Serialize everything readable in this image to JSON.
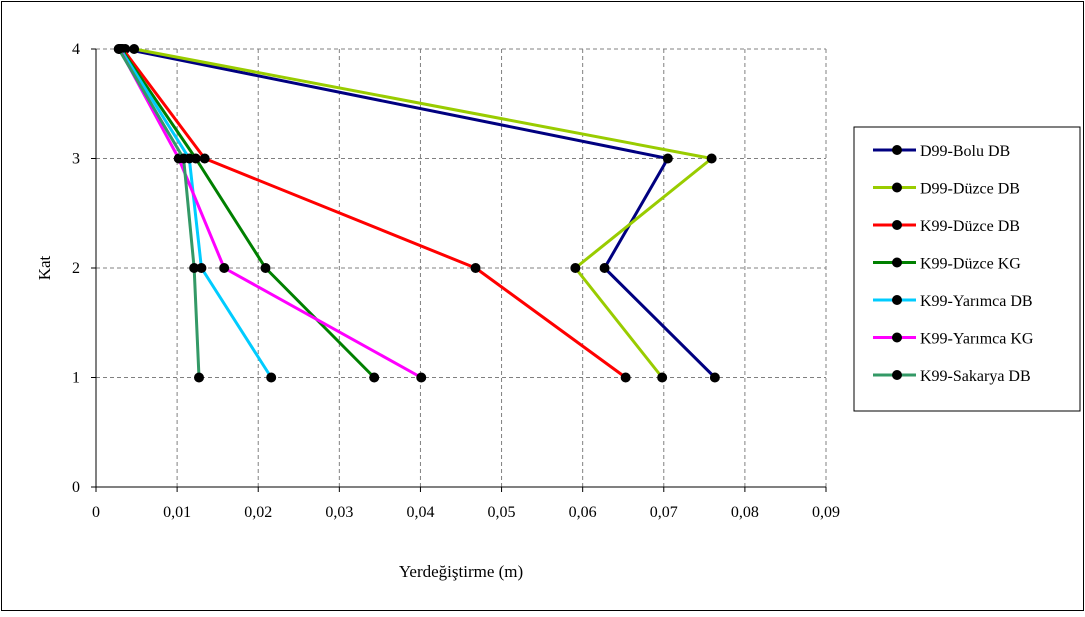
{
  "chart_data": {
    "type": "line",
    "title": "",
    "xlabel": "Yerdeğiştirme (m)",
    "ylabel": "Kat",
    "xlim": [
      0,
      0.09
    ],
    "ylim": [
      0,
      4
    ],
    "x_ticks": [
      0,
      0.01,
      0.02,
      0.03,
      0.04,
      0.05,
      0.06,
      0.07,
      0.08,
      0.09
    ],
    "x_tick_labels": [
      "0",
      "0,01",
      "0,02",
      "0,03",
      "0,04",
      "0,05",
      "0,06",
      "0,07",
      "0,08",
      "0,09"
    ],
    "y_ticks": [
      0,
      1,
      2,
      3,
      4
    ],
    "y_tick_labels": [
      "0",
      "1",
      "2",
      "3",
      "4"
    ],
    "grid": "dashed",
    "legend_position": "right",
    "series": [
      {
        "name": "D99-Bolu DB",
        "color": "#000080",
        "x": [
          0.0763,
          0.0627,
          0.0705,
          0.0036
        ],
        "y": [
          1,
          2,
          3,
          4
        ]
      },
      {
        "name": "D99-Düzce DB",
        "color": "#99CC00",
        "x": [
          0.0698,
          0.0591,
          0.0759,
          0.0047
        ],
        "y": [
          1,
          2,
          3,
          4
        ]
      },
      {
        "name": "K99-Düzce DB",
        "color": "#FF0000",
        "x": [
          0.0653,
          0.0468,
          0.0134,
          0.0033
        ],
        "y": [
          1,
          2,
          3,
          4
        ]
      },
      {
        "name": "K99-Düzce KG",
        "color": "#008000",
        "x": [
          0.0343,
          0.0209,
          0.0123,
          0.0031
        ],
        "y": [
          1,
          2,
          3,
          4
        ]
      },
      {
        "name": "K99-Yarımca DB",
        "color": "#00CCFF",
        "x": [
          0.0216,
          0.013,
          0.0115,
          0.003
        ],
        "y": [
          1,
          2,
          3,
          4
        ]
      },
      {
        "name": "K99-Yarımca KG",
        "color": "#FF00FF",
        "x": [
          0.0401,
          0.0158,
          0.0102,
          0.0029
        ],
        "y": [
          1,
          2,
          3,
          4
        ]
      },
      {
        "name": "K99-Sakarya DB",
        "color": "#339966",
        "x": [
          0.0127,
          0.0121,
          0.0108,
          0.0028
        ],
        "y": [
          1,
          2,
          3,
          4
        ]
      }
    ]
  }
}
